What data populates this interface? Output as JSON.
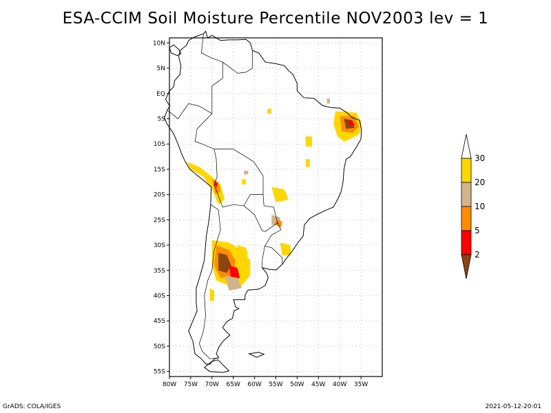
{
  "title": "ESA-CCIM Soil Moisture Percentile NOV2003 lev = 1",
  "footer": {
    "left": "GrADS: COLA/IGES",
    "right": "2021-05-12-20:01"
  },
  "map": {
    "lon_range": [
      -80,
      -30
    ],
    "lat_range": [
      -56,
      11
    ],
    "lon_ticks": [
      {
        "value": -80,
        "label": "80W"
      },
      {
        "value": -75,
        "label": "75W"
      },
      {
        "value": -70,
        "label": "70W"
      },
      {
        "value": -65,
        "label": "65W"
      },
      {
        "value": -60,
        "label": "60W"
      },
      {
        "value": -55,
        "label": "55W"
      },
      {
        "value": -50,
        "label": "50W"
      },
      {
        "value": -45,
        "label": "45W"
      },
      {
        "value": -40,
        "label": "40W"
      },
      {
        "value": -35,
        "label": "35W"
      }
    ],
    "lat_ticks": [
      {
        "value": 10,
        "label": "10N"
      },
      {
        "value": 5,
        "label": "5N"
      },
      {
        "value": 0,
        "label": "EQ"
      },
      {
        "value": -5,
        "label": "5S"
      },
      {
        "value": -10,
        "label": "10S"
      },
      {
        "value": -15,
        "label": "15S"
      },
      {
        "value": -20,
        "label": "20S"
      },
      {
        "value": -25,
        "label": "25S"
      },
      {
        "value": -30,
        "label": "30S"
      },
      {
        "value": -35,
        "label": "35S"
      },
      {
        "value": -40,
        "label": "40S"
      },
      {
        "value": -45,
        "label": "45S"
      },
      {
        "value": -50,
        "label": "50S"
      },
      {
        "value": -55,
        "label": "55S"
      }
    ],
    "grid": true
  },
  "legend": {
    "levels": [
      "2",
      "5",
      "10",
      "20",
      "30"
    ],
    "colors": [
      "#8b4513",
      "#ff0000",
      "#ff8c00",
      "#d2b48c",
      "#ffd700",
      "#ffffff"
    ]
  }
}
